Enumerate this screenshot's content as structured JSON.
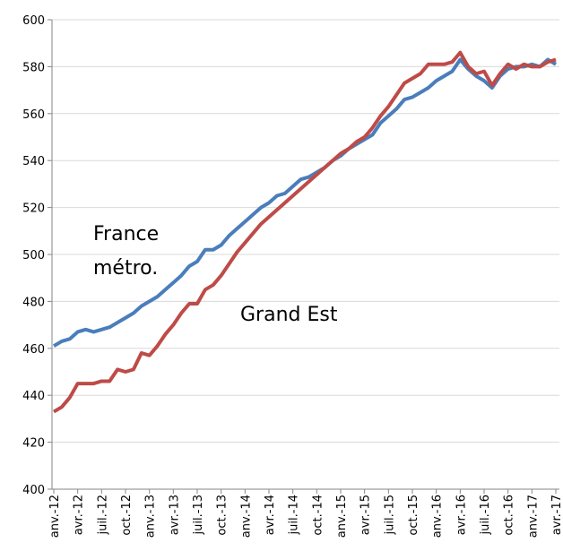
{
  "chart_data": {
    "type": "line",
    "categories": [
      "anv.-12",
      null,
      null,
      "avr.-12",
      null,
      null,
      "juil.-12",
      null,
      null,
      "oct.-12",
      null,
      null,
      "anv.-13",
      null,
      null,
      "avr.-13",
      null,
      null,
      "juil.-13",
      null,
      null,
      "oct.-13",
      null,
      null,
      "anv.-14",
      null,
      null,
      "avr.-14",
      null,
      null,
      "juil.-14",
      null,
      null,
      "oct.-14",
      null,
      null,
      "anv.-15",
      null,
      null,
      "avr.-15",
      null,
      null,
      "juil.-15",
      null,
      null,
      "oct.-15",
      null,
      null,
      "anv.-16",
      null,
      null,
      "avr.-16",
      null,
      null,
      "juil.-16",
      null,
      null,
      "oct.-16",
      null,
      null,
      "anv.-17",
      null,
      null,
      "avr.-17"
    ],
    "series": [
      {
        "name": "France métro.",
        "color": "#4a7ebb",
        "values": [
          461,
          463,
          464,
          467,
          468,
          467,
          468,
          469,
          471,
          473,
          475,
          478,
          480,
          482,
          485,
          488,
          491,
          495,
          497,
          502,
          502,
          504,
          508,
          511,
          514,
          517,
          520,
          522,
          525,
          526,
          529,
          532,
          533,
          535,
          537,
          540,
          542,
          545,
          547,
          549,
          551,
          556,
          559,
          562,
          566,
          567,
          569,
          571,
          574,
          576,
          578,
          583,
          579,
          576,
          574,
          571,
          576,
          579,
          580,
          580,
          581,
          580,
          583,
          581
        ]
      },
      {
        "name": "Grand Est",
        "color": "#be4b48",
        "values": [
          433,
          435,
          439,
          445,
          445,
          445,
          446,
          446,
          451,
          450,
          451,
          458,
          457,
          461,
          466,
          470,
          475,
          479,
          479,
          485,
          487,
          491,
          496,
          501,
          505,
          509,
          513,
          516,
          519,
          522,
          525,
          528,
          531,
          534,
          537,
          540,
          543,
          545,
          548,
          550,
          554,
          559,
          563,
          568,
          573,
          575,
          577,
          581,
          581,
          581,
          582,
          586,
          580,
          577,
          578,
          572,
          577,
          581,
          579,
          581,
          580,
          580,
          582,
          583
        ]
      }
    ],
    "ylim": [
      400,
      600
    ],
    "yticks": [
      400,
      420,
      440,
      460,
      480,
      500,
      520,
      540,
      560,
      580,
      600
    ],
    "grid": true
  }
}
